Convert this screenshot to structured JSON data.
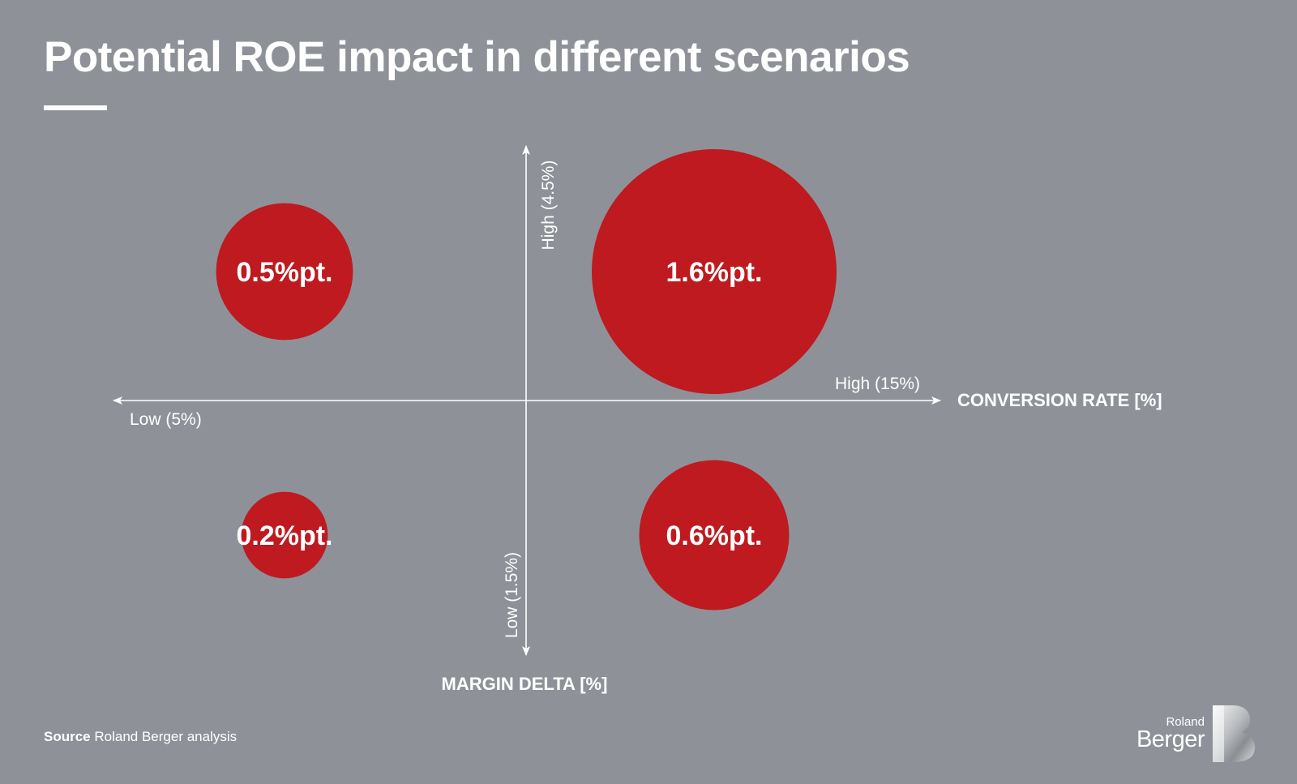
{
  "title": "Potential ROE impact in different scenarios",
  "source": {
    "key": "Source",
    "text": "Roland Berger analysis"
  },
  "logo": {
    "small_text": "Roland",
    "big_text": "Berger"
  },
  "colors": {
    "background": "#8e9298",
    "bubble": "#be1a1f",
    "text": "#ffffff"
  },
  "chart_data": {
    "type": "scatter",
    "variant": "bubble-quadrant",
    "xlabel": "CONVERSION RATE [%]",
    "ylabel": "MARGIN DELTA [%]",
    "x_axis": {
      "low_label": "Low (5%)",
      "high_label": "High (15%)"
    },
    "y_axis": {
      "high_label": "High (4.5%)",
      "low_label": "Low (1.5%)"
    },
    "points": [
      {
        "x": "Low",
        "y": "High",
        "value": 0.5,
        "label": "0.5%pt."
      },
      {
        "x": "High",
        "y": "High",
        "value": 1.6,
        "label": "1.6%pt."
      },
      {
        "x": "Low",
        "y": "Low",
        "value": 0.2,
        "label": "0.2%pt."
      },
      {
        "x": "High",
        "y": "Low",
        "value": 0.6,
        "label": "0.6%pt."
      }
    ]
  }
}
